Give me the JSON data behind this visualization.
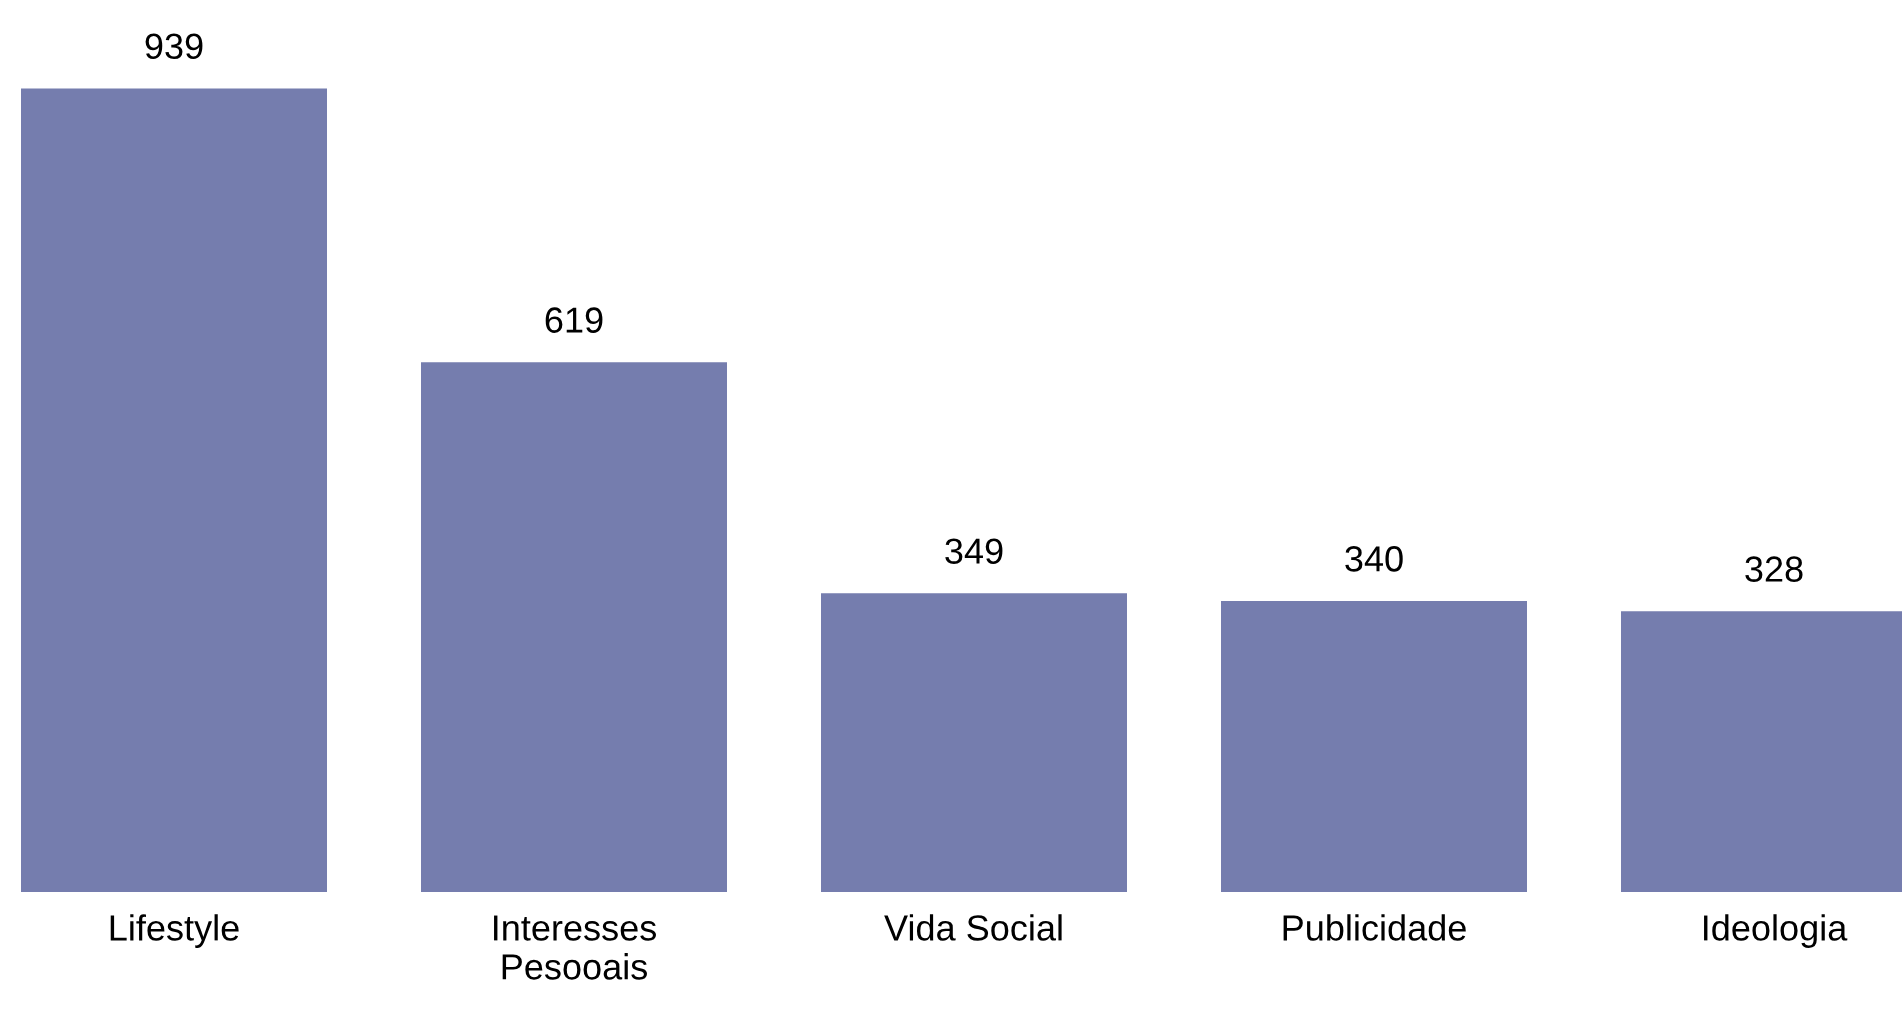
{
  "chart_data": {
    "type": "bar",
    "categories": [
      "Lifestyle",
      "Interesses\nPesooais",
      "Vida Social",
      "Publicidade",
      "Ideologia"
    ],
    "values": [
      939,
      619,
      349,
      340,
      328
    ],
    "color": "#757dae",
    "data_labels": true,
    "grid": false,
    "legend": false
  }
}
